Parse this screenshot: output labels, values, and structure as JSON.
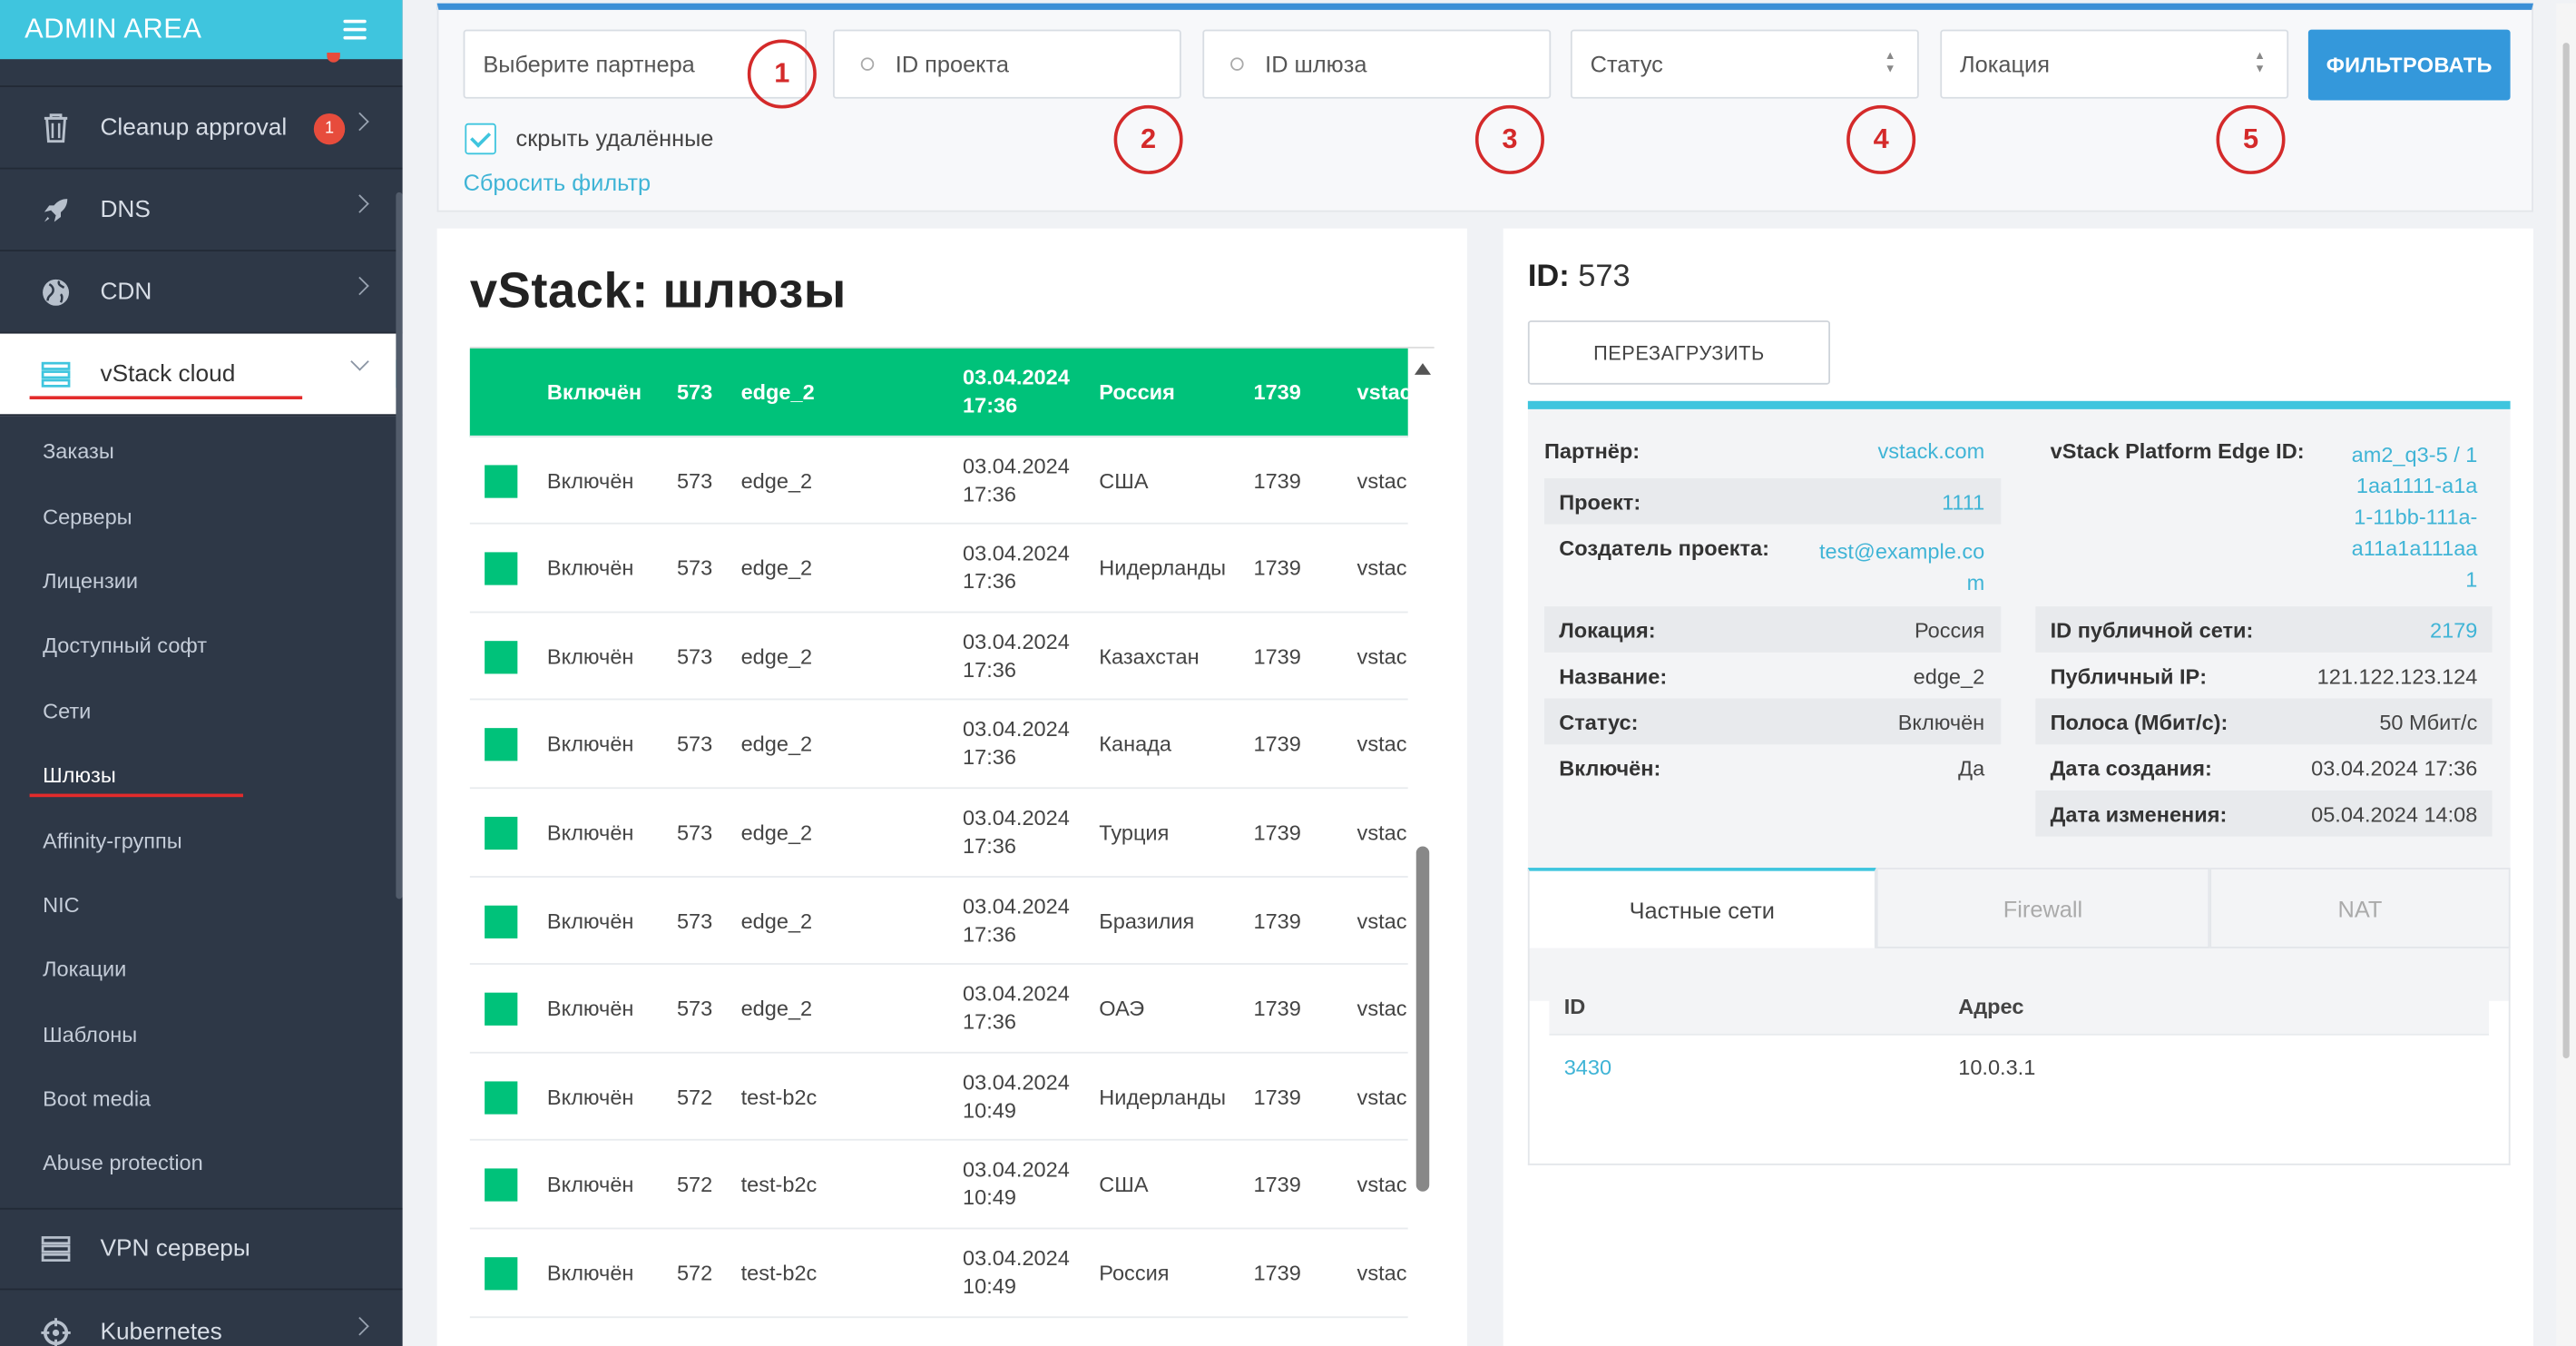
{
  "sidebar": {
    "title": "ADMIN AREA",
    "items": [
      {
        "label": "Cleanup approval",
        "badge": "1"
      },
      {
        "label": "DNS"
      },
      {
        "label": "CDN"
      },
      {
        "label": "vStack cloud"
      }
    ],
    "subitems": [
      "Заказы",
      "Серверы",
      "Лицензии",
      "Доступный софт",
      "Сети",
      "Шлюзы",
      "Affinity-группы",
      "NIC",
      "Локации",
      "Шаблоны",
      "Boot media",
      "Abuse protection"
    ],
    "bottom_items": [
      {
        "label": "VPN серверы"
      },
      {
        "label": "Kubernetes"
      }
    ]
  },
  "filter": {
    "partner_placeholder": "Выберите партнера",
    "project_placeholder": "ID проекта",
    "gateway_placeholder": "ID шлюза",
    "status_placeholder": "Статус",
    "location_placeholder": "Локация",
    "apply_label": "ФИЛЬТРОВАТЬ",
    "hide_deleted_label": "скрыть удалённые",
    "hide_deleted_checked": true,
    "reset_label": "Сбросить фильтр",
    "markers": [
      "1",
      "2",
      "3",
      "4",
      "5"
    ]
  },
  "list": {
    "title": "vStack: шлюзы",
    "rows": [
      {
        "status": "Включён",
        "id": "573",
        "name": "edge_2",
        "date": "03.04.2024",
        "time": "17:36",
        "country": "Россия",
        "num": "1739",
        "vs": "vstac",
        "selected": true
      },
      {
        "status": "Включён",
        "id": "573",
        "name": "edge_2",
        "date": "03.04.2024",
        "time": "17:36",
        "country": "США",
        "num": "1739",
        "vs": "vstac"
      },
      {
        "status": "Включён",
        "id": "573",
        "name": "edge_2",
        "date": "03.04.2024",
        "time": "17:36",
        "country": "Нидерланды",
        "num": "1739",
        "vs": "vstac"
      },
      {
        "status": "Включён",
        "id": "573",
        "name": "edge_2",
        "date": "03.04.2024",
        "time": "17:36",
        "country": "Казахстан",
        "num": "1739",
        "vs": "vstac"
      },
      {
        "status": "Включён",
        "id": "573",
        "name": "edge_2",
        "date": "03.04.2024",
        "time": "17:36",
        "country": "Канада",
        "num": "1739",
        "vs": "vstac"
      },
      {
        "status": "Включён",
        "id": "573",
        "name": "edge_2",
        "date": "03.04.2024",
        "time": "17:36",
        "country": "Турция",
        "num": "1739",
        "vs": "vstac"
      },
      {
        "status": "Включён",
        "id": "573",
        "name": "edge_2",
        "date": "03.04.2024",
        "time": "17:36",
        "country": "Бразилия",
        "num": "1739",
        "vs": "vstac"
      },
      {
        "status": "Включён",
        "id": "573",
        "name": "edge_2",
        "date": "03.04.2024",
        "time": "17:36",
        "country": "ОАЭ",
        "num": "1739",
        "vs": "vstac"
      },
      {
        "status": "Включён",
        "id": "572",
        "name": "test-b2c",
        "date": "03.04.2024",
        "time": "10:49",
        "country": "Нидерланды",
        "num": "1739",
        "vs": "vstac"
      },
      {
        "status": "Включён",
        "id": "572",
        "name": "test-b2c",
        "date": "03.04.2024",
        "time": "10:49",
        "country": "США",
        "num": "1739",
        "vs": "vstac"
      },
      {
        "status": "Включён",
        "id": "572",
        "name": "test-b2c",
        "date": "03.04.2024",
        "time": "10:49",
        "country": "Россия",
        "num": "1739",
        "vs": "vstac"
      }
    ]
  },
  "detail": {
    "id_label": "ID:",
    "id_value": "573",
    "reload_label": "ПЕРЕЗАГРУЗИТЬ",
    "left": [
      {
        "k": "Партнёр:",
        "v": "vstack.com"
      },
      {
        "k": "Проект:",
        "v": "1111"
      },
      {
        "k": "Создатель проекта:",
        "v1": "test@example.co",
        "v2": "m"
      },
      {
        "k": "Локация:",
        "v": "Россия"
      },
      {
        "k": "Название:",
        "v": "edge_2"
      },
      {
        "k": "Статус:",
        "v": "Включён"
      },
      {
        "k": "Включён:",
        "v": "Да"
      }
    ],
    "right": [
      {
        "k": "vStack Platform Edge ID:",
        "lines": [
          "am2_q3-5 / 1",
          "1aa1111-a1a",
          "1-11bb-111a-",
          "a11a1a111aa",
          "1"
        ]
      },
      {
        "k": "ID публичной сети:",
        "v": "2179"
      },
      {
        "k": "Публичный IP:",
        "v": "121.122.123.124"
      },
      {
        "k": "Полоса (Мбит/с):",
        "v": "50 Мбит/с"
      },
      {
        "k": "Дата создания:",
        "v": "03.04.2024 17:36"
      },
      {
        "k": "Дата изменения:",
        "v": "05.04.2024 14:08"
      }
    ],
    "tabs": [
      "Частные сети",
      "Firewall",
      "NAT"
    ],
    "net_table": {
      "headers": [
        "ID",
        "Адрес"
      ],
      "rows": [
        {
          "id": "3430",
          "address": "10.0.3.1"
        }
      ]
    }
  }
}
